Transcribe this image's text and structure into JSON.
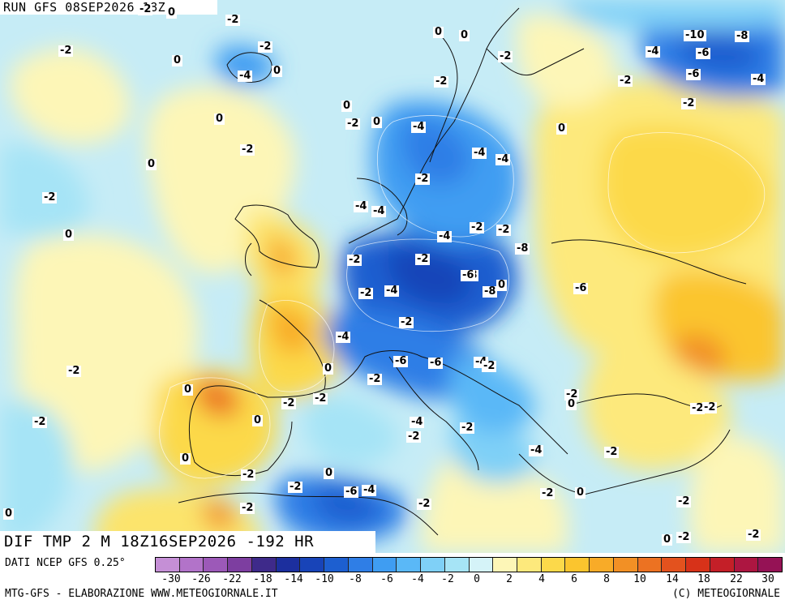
{
  "run_label": "RUN GFS 08SEP2026 18Z",
  "map_title": "DIF TMP 2 M 18Z16SEP2026 -192 HR",
  "source_label": "DATI NCEP GFS 0.25°",
  "credit": "MTG-GFS - ELABORAZIONE WWW.METEOGIORNALE.IT",
  "copyright": "(C) METEOGIORNALE",
  "legend": {
    "tick_labels": [
      "-30",
      "-26",
      "-22",
      "-18",
      "-14",
      "-10",
      "-8",
      "-6",
      "-4",
      "-2",
      "0",
      "2",
      "4",
      "6",
      "8",
      "10",
      "14",
      "18",
      "22",
      "30"
    ],
    "colors": [
      "#c58fd6",
      "#b273c9",
      "#9c59b8",
      "#7d3ea0",
      "#3e2a8a",
      "#1c2f9e",
      "#1844b8",
      "#1d5fd0",
      "#2f7ee6",
      "#3f9df2",
      "#5ab8f7",
      "#7fd0f7",
      "#a6e4f6",
      "#d5f3f8",
      "#fdf6b7",
      "#fde97c",
      "#fcd94a",
      "#fbc52e",
      "#f8ab28",
      "#f29025",
      "#ec7222",
      "#e3521e",
      "#d73219",
      "#c41f28",
      "#ad1641",
      "#951255"
    ]
  },
  "map_values": [
    "-2",
    "0",
    "-2",
    "-2",
    "-2",
    "0",
    "-4",
    "0",
    "0",
    "0",
    "-2",
    "0",
    "-2",
    "0",
    "-2",
    "0",
    "0",
    "0",
    "-2",
    "0",
    "-4",
    "-4",
    "-8",
    "-2",
    "-4",
    "-8",
    "-6",
    "-10",
    "-8",
    "-2",
    "-4",
    "-6",
    "-2",
    "-4",
    "-2",
    "-4",
    "-4",
    "-2",
    "-2",
    "-2",
    "-4",
    "-4",
    "-2",
    "-6",
    "-8",
    "-8",
    "-6",
    "-2",
    "0",
    "0",
    "-2",
    "-4",
    "-6",
    "-6",
    "-4",
    "-2",
    "-2",
    "-2",
    "-4",
    "-2",
    "-2",
    "-2",
    "-2",
    "-2",
    "-2",
    "0",
    "-2",
    "0",
    "-4",
    "-2",
    "-6",
    "-4",
    "-2",
    "0",
    "0",
    "-2",
    "-2",
    "0",
    "-2",
    "0",
    "-2",
    "-2",
    "-2",
    "0",
    "0",
    "-2",
    "-2"
  ]
}
